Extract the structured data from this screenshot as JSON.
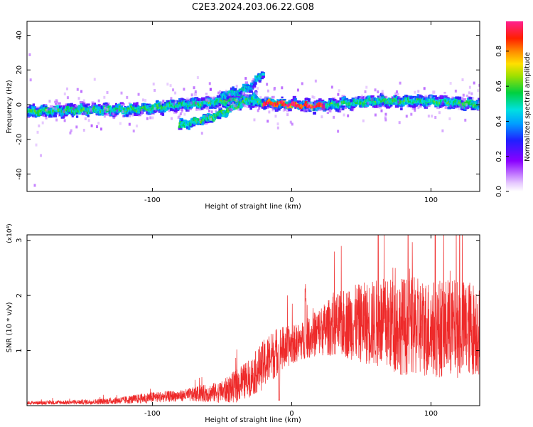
{
  "title": "C2E3.2024.203.06.22.G08",
  "colors": {
    "snr_line": "#ee2a2a",
    "frame": "#000000",
    "background": "#ffffff"
  },
  "chart_data": [
    {
      "type": "heatmap",
      "xlabel": "Height of straight line (km)",
      "ylabel": "Frequency (Hz)",
      "xlim": [
        -190,
        135
      ],
      "ylim": [
        -50,
        48
      ],
      "x_ticks": [
        -100,
        0,
        100
      ],
      "y_ticks": [
        -40,
        -20,
        0,
        20,
        40
      ],
      "grid": false,
      "colorbar": {
        "label": "Normalized spectral amplitude",
        "range": [
          0.0,
          0.97
        ],
        "ticks": [
          0.0,
          0.2,
          0.4,
          0.6,
          0.8
        ],
        "colormap": "rainbow (violet→blue→cyan→green→yellow→orange→red→magenta)"
      },
      "ridges": [
        {
          "x": [
            -190,
            -150,
            -120,
            -100,
            -80,
            -60,
            -40,
            -20,
            0,
            20,
            40,
            60,
            80,
            100,
            120,
            135
          ],
          "freq": [
            -4,
            -3,
            -3,
            -2,
            0,
            1,
            3,
            1,
            0,
            -1,
            1,
            2,
            2,
            2,
            1,
            0
          ],
          "amp": 0.5
        },
        {
          "x": [
            -80,
            -70,
            -60,
            -50,
            -40,
            -30,
            -25
          ],
          "freq": [
            -12,
            -10,
            -8,
            -5,
            -1,
            3,
            5
          ],
          "amp": 0.5
        },
        {
          "x": [
            -50,
            -40,
            -30,
            -25,
            -20
          ],
          "freq": [
            5,
            7,
            10,
            14,
            19
          ],
          "amp": 0.4
        }
      ]
    },
    {
      "type": "line",
      "xlabel": "Height of straight line (km)",
      "ylabel": "SNR (10 * v/v)",
      "y_multiplier": "(x10⁴)",
      "xlim": [
        -190,
        135
      ],
      "ylim": [
        0,
        3.1
      ],
      "x_ticks": [
        -100,
        0,
        100
      ],
      "y_ticks": [
        1,
        2,
        3
      ],
      "grid": false,
      "envelope": {
        "x": [
          -190,
          -160,
          -140,
          -120,
          -100,
          -80,
          -50,
          -40,
          -30,
          -20,
          -10,
          0,
          10,
          20,
          30,
          40,
          60,
          80,
          100,
          120,
          135
        ],
        "mean": [
          0.05,
          0.06,
          0.07,
          0.1,
          0.15,
          0.18,
          0.25,
          0.35,
          0.5,
          0.75,
          1.0,
          1.1,
          1.2,
          1.35,
          1.45,
          1.5,
          1.5,
          1.45,
          1.4,
          1.4,
          1.4
        ],
        "spread": [
          0.03,
          0.04,
          0.05,
          0.07,
          0.1,
          0.1,
          0.2,
          0.3,
          0.35,
          0.45,
          0.45,
          0.35,
          0.35,
          0.45,
          0.55,
          0.65,
          0.8,
          0.9,
          0.9,
          0.9,
          0.85
        ]
      },
      "series": [
        {
          "values_note": ""
        }
      ]
    }
  ]
}
